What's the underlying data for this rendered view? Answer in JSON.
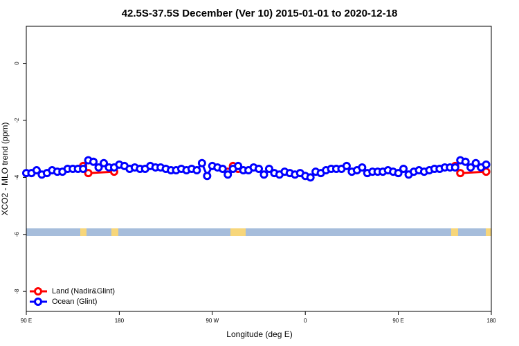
{
  "chart_data": {
    "type": "line",
    "title": "42.5S-37.5S December (Ver 10)   2015-01-01 to 2020-12-18",
    "x_label": "Longitude (deg E)",
    "y_label": "XCO2 - MLO trend (ppm)",
    "xlim": [
      90,
      540
    ],
    "xticks": [
      {
        "value": 90,
        "label": "90 E"
      },
      180,
      {
        "value": 270,
        "label": "90 W"
      },
      {
        "value": 360,
        "label": "0"
      },
      {
        "value": 450,
        "label": "90 E"
      },
      {
        "value": 540,
        "label": "180"
      }
    ],
    "ylim": [
      -8.7,
      1.3
    ],
    "yticks": [
      0,
      -2,
      -4,
      -6,
      -8
    ],
    "legend": "bottom-left",
    "series": [
      {
        "name": "Land (Nadir&Glint)",
        "color": "#ff0000",
        "x": [
          145,
          150,
          175,
          230,
          285,
          290,
          295,
          400,
          505,
          510,
          535
        ],
        "values": [
          -3.6,
          -3.85,
          -3.8,
          null,
          -3.8,
          -3.6,
          -3.7,
          null,
          -3.6,
          -3.85,
          -3.8
        ]
      },
      {
        "name": "Ocean (Glint)",
        "color": "#0000ff",
        "x": [
          90,
          95,
          100,
          105,
          110,
          115,
          120,
          125,
          130,
          135,
          140,
          145,
          150,
          155,
          160,
          165,
          170,
          175,
          180,
          185,
          190,
          195,
          200,
          205,
          210,
          215,
          220,
          225,
          230,
          235,
          240,
          245,
          250,
          255,
          260,
          265,
          270,
          275,
          280,
          285,
          290,
          295,
          300,
          305,
          310,
          315,
          320,
          325,
          330,
          335,
          340,
          345,
          350,
          355,
          360,
          365,
          370,
          375,
          380,
          385,
          390,
          395,
          400,
          405,
          410,
          415,
          420,
          425,
          430,
          435,
          440,
          445,
          450,
          455,
          460,
          465,
          470,
          475,
          480,
          485,
          490,
          495,
          500,
          505,
          510,
          515,
          520,
          525,
          530,
          535
        ],
        "values": [
          -3.85,
          -3.85,
          -3.75,
          -3.9,
          -3.85,
          -3.75,
          -3.8,
          -3.8,
          -3.7,
          -3.7,
          -3.7,
          -3.7,
          -3.4,
          -3.45,
          -3.65,
          -3.5,
          -3.65,
          -3.65,
          -3.55,
          -3.6,
          -3.7,
          -3.65,
          -3.7,
          -3.7,
          -3.6,
          -3.65,
          -3.65,
          -3.7,
          -3.75,
          -3.75,
          -3.7,
          -3.75,
          -3.7,
          -3.75,
          -3.5,
          -3.95,
          -3.6,
          -3.65,
          -3.7,
          -3.9,
          -3.7,
          -3.6,
          -3.75,
          -3.75,
          -3.65,
          -3.7,
          -3.9,
          -3.7,
          -3.85,
          -3.9,
          -3.8,
          -3.85,
          -3.9,
          -3.85,
          -3.95,
          -4.0,
          -3.8,
          -3.85,
          -3.75,
          -3.7,
          -3.7,
          -3.7,
          -3.6,
          -3.8,
          -3.75,
          -3.65,
          -3.85,
          -3.8,
          -3.8,
          -3.8,
          -3.75,
          -3.8,
          -3.85,
          -3.7,
          -3.9,
          -3.8,
          -3.75,
          -3.8,
          -3.75,
          -3.7,
          -3.7,
          -3.65,
          -3.65,
          -3.65,
          -3.4,
          -3.45,
          -3.65,
          -3.5,
          -3.65,
          -3.55
        ]
      }
    ]
  }
}
